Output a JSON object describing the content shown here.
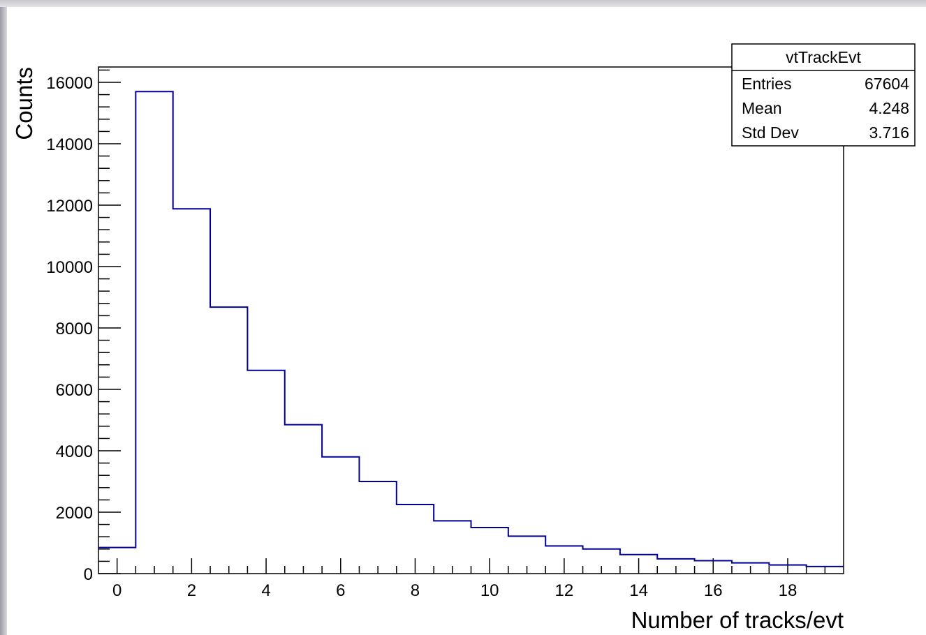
{
  "chart_data": {
    "type": "bar",
    "style": "step-histogram",
    "title": "",
    "xlabel": "Number of tracks/evt",
    "ylabel": "Counts",
    "xlim": [
      -0.5,
      19.5
    ],
    "ylim": [
      0,
      16500
    ],
    "x_bin_edges": [
      -0.5,
      0.5,
      1.5,
      2.5,
      3.5,
      4.5,
      5.5,
      6.5,
      7.5,
      8.5,
      9.5,
      10.5,
      11.5,
      12.5,
      13.5,
      14.5,
      15.5,
      16.5,
      17.5,
      18.5,
      19.5
    ],
    "values": [
      850,
      15700,
      11880,
      8680,
      6620,
      4850,
      3800,
      3000,
      2250,
      1720,
      1500,
      1220,
      900,
      800,
      620,
      480,
      420,
      350,
      280,
      230
    ],
    "x_ticks": [
      "0",
      "2",
      "4",
      "6",
      "8",
      "10",
      "12",
      "14",
      "16",
      "18"
    ],
    "y_ticks": [
      "0",
      "2000",
      "4000",
      "6000",
      "8000",
      "10000",
      "12000",
      "14000",
      "16000"
    ],
    "line_color": "#000099",
    "grid": false,
    "legend": "none",
    "stats_box": {
      "title": "vtTrackEvt",
      "placement": "top-right",
      "rows": [
        {
          "label": "Entries",
          "value": "67604"
        },
        {
          "label": "Mean",
          "value": "4.248"
        },
        {
          "label": "Std Dev",
          "value": "3.716"
        }
      ]
    }
  }
}
